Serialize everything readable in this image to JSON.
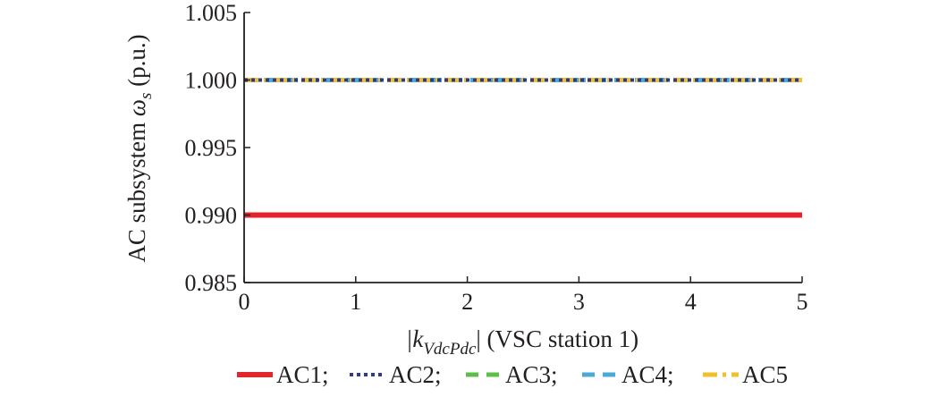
{
  "chart_data": {
    "type": "line",
    "title": "",
    "xlabel": {
      "prefix": "|k",
      "subscript": "VdcPdc",
      "suffix": "| (VSC station 1)"
    },
    "ylabel": {
      "prefix": "AC subsystem ",
      "symbol": "ω",
      "subscript": "s",
      "suffix": " (p.u.)"
    },
    "xlim": [
      0,
      5
    ],
    "ylim": [
      0.985,
      1.005
    ],
    "xticks": [
      0,
      1,
      2,
      3,
      4,
      5
    ],
    "xtick_labels": [
      "0",
      "1",
      "2",
      "3",
      "4",
      "5"
    ],
    "yticks": [
      0.985,
      0.99,
      0.995,
      1.0,
      1.005
    ],
    "ytick_labels": [
      "0.985",
      "0.990",
      "0.995",
      "1.000",
      "1.005"
    ],
    "grid": false,
    "legend_position": "bottom",
    "series": [
      {
        "name": "AC1",
        "legend_text": "AC1;",
        "color": "#e3262d",
        "style": "solid",
        "x": [
          0,
          5
        ],
        "y": [
          0.99,
          0.99
        ]
      },
      {
        "name": "AC2",
        "legend_text": "AC2;",
        "color": "#2e3a8f",
        "style": "dotted",
        "x": [
          0,
          5
        ],
        "y": [
          1.0,
          1.0
        ]
      },
      {
        "name": "AC3",
        "legend_text": "AC3;",
        "color": "#5bbf4a",
        "style": "dashed",
        "x": [
          0,
          5
        ],
        "y": [
          1.0,
          1.0
        ]
      },
      {
        "name": "AC4",
        "legend_text": "AC4;",
        "color": "#4aa9d6",
        "style": "dashed",
        "x": [
          0,
          5
        ],
        "y": [
          1.0,
          1.0
        ]
      },
      {
        "name": "AC5",
        "legend_text": "AC5",
        "color": "#eec12c",
        "style": "dashdot",
        "x": [
          0,
          5
        ],
        "y": [
          1.0,
          1.0
        ]
      }
    ]
  }
}
